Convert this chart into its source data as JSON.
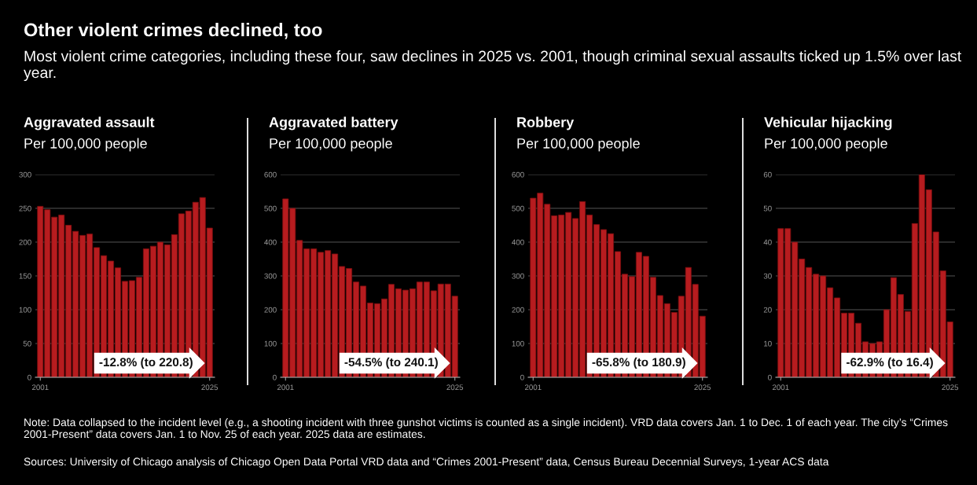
{
  "chart_data": [
    {
      "type": "other",
      "title": "Other violent crimes declined, too",
      "subtitle": "Most violent crime categories, including these four, saw declines in 2025 vs. 2001, though criminal sexual assaults ticked up 1.5% over last year.",
      "annotations": [
        "Note: Data collapsed to the incident level (e.g., a shooting incident with three gunshot victims is counted as a single incident). VRD data covers Jan. 1 to Dec. 1 of each year. The city’s “Crimes 2001-Present” data covers Jan. 1 to Nov. 25 of each year. 2025 data are estimates.",
        "Sources: University of Chicago analysis of Chicago Open Data Portal VRD data and “Crimes 2001-Present” data, Census Bureau Decennial Surveys, 1-year ACS data"
      ]
    },
    {
      "type": "bar",
      "title": "Aggravated assault",
      "subtitle": "Per 100,000 people",
      "color": "#b71c1f",
      "grid": "y",
      "x": [
        2001,
        2002,
        2003,
        2004,
        2005,
        2006,
        2007,
        2008,
        2009,
        2010,
        2011,
        2012,
        2013,
        2014,
        2015,
        2016,
        2017,
        2018,
        2019,
        2020,
        2021,
        2022,
        2023,
        2024,
        2025
      ],
      "values": [
        253,
        248,
        237,
        240,
        225,
        216,
        210,
        212,
        192,
        180,
        172,
        162,
        142,
        143,
        148,
        190,
        194,
        200,
        196,
        211,
        242,
        246,
        259,
        266,
        220.8
      ],
      "xlim": [
        2000.3,
        2025.7
      ],
      "xticks": [
        2001,
        2025
      ],
      "ylim": [
        0,
        300
      ],
      "yticks": [
        0,
        50,
        100,
        150,
        200,
        250,
        300
      ],
      "annotations": [
        "-12.8% (to 220.8)"
      ]
    },
    {
      "type": "bar",
      "title": "Aggravated battery",
      "subtitle": "Per 100,000 people",
      "color": "#b71c1f",
      "grid": "y",
      "x": [
        2001,
        2002,
        2003,
        2004,
        2005,
        2006,
        2007,
        2008,
        2009,
        2010,
        2011,
        2012,
        2013,
        2014,
        2015,
        2016,
        2017,
        2018,
        2019,
        2020,
        2021,
        2022,
        2023,
        2024,
        2025
      ],
      "values": [
        528,
        500,
        405,
        380,
        380,
        370,
        375,
        365,
        328,
        322,
        282,
        270,
        220,
        218,
        232,
        275,
        262,
        258,
        262,
        282,
        282,
        256,
        276,
        276,
        240.1
      ],
      "xlim": [
        2000.3,
        2025.7
      ],
      "xticks": [
        2001,
        2025
      ],
      "ylim": [
        0,
        600
      ],
      "yticks": [
        0,
        100,
        200,
        300,
        400,
        500,
        600
      ],
      "annotations": [
        "-54.5% (to 240.1)"
      ]
    },
    {
      "type": "bar",
      "title": "Robbery",
      "subtitle": "Per 100,000 people",
      "color": "#b71c1f",
      "grid": "y",
      "x": [
        2001,
        2002,
        2003,
        2004,
        2005,
        2006,
        2007,
        2008,
        2009,
        2010,
        2011,
        2012,
        2013,
        2014,
        2015,
        2016,
        2017,
        2018,
        2019,
        2020,
        2021,
        2022,
        2023,
        2024,
        2025
      ],
      "values": [
        530,
        545,
        512,
        478,
        480,
        488,
        470,
        520,
        480,
        452,
        437,
        425,
        372,
        305,
        298,
        370,
        358,
        296,
        242,
        218,
        192,
        240,
        325,
        275,
        180.9
      ],
      "xlim": [
        2000.3,
        2025.7
      ],
      "xticks": [
        2001,
        2025
      ],
      "ylim": [
        0,
        600
      ],
      "yticks": [
        0,
        100,
        200,
        300,
        400,
        500,
        600
      ],
      "annotations": [
        "-65.8% (to 180.9)"
      ]
    },
    {
      "type": "bar",
      "title": "Vehicular hijacking",
      "subtitle": "Per 100,000 people",
      "color": "#b71c1f",
      "grid": "y",
      "x": [
        2001,
        2002,
        2003,
        2004,
        2005,
        2006,
        2007,
        2008,
        2009,
        2010,
        2011,
        2012,
        2013,
        2014,
        2015,
        2016,
        2017,
        2018,
        2019,
        2020,
        2021,
        2022,
        2023,
        2024,
        2025
      ],
      "values": [
        44,
        44,
        40,
        35,
        32.5,
        30.5,
        30,
        26.5,
        23.5,
        19,
        19,
        16,
        10.5,
        10,
        10.5,
        20,
        29.5,
        24.5,
        19.5,
        45.5,
        60,
        55.5,
        43,
        31.5,
        16.4
      ],
      "xlim": [
        2000.3,
        2025.7
      ],
      "xticks": [
        2001,
        2025
      ],
      "ylim": [
        0,
        60
      ],
      "yticks": [
        0,
        10,
        20,
        30,
        40,
        50,
        60
      ],
      "annotations": [
        "-62.9% (to 16.4)"
      ]
    }
  ]
}
